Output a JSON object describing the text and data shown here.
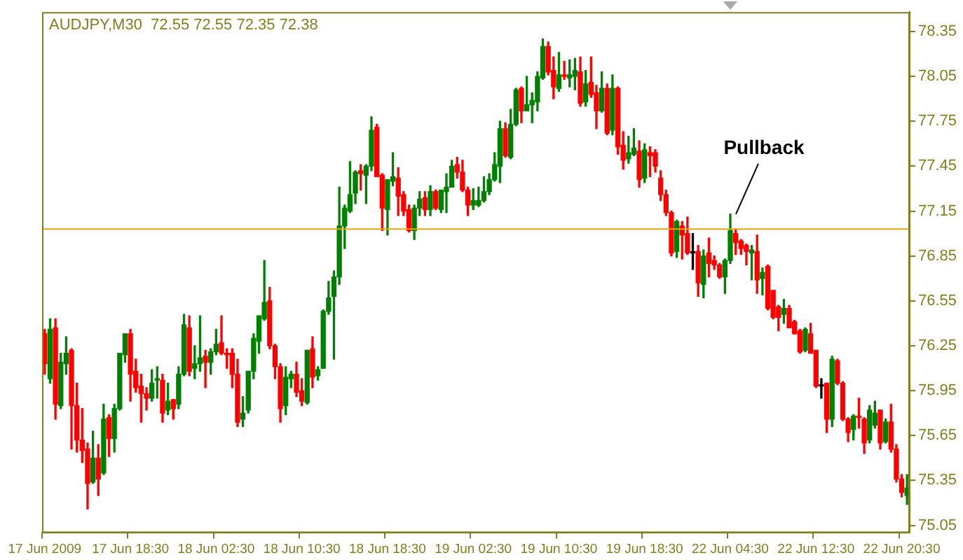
{
  "chart_data": {
    "type": "candlestick",
    "title": "AUDJPY,M30  72.55 72.55 72.35 72.38",
    "categories": [
      "17 Jun 2009",
      null,
      null,
      null,
      null,
      null,
      null,
      null,
      null,
      null,
      null,
      null,
      null,
      null,
      null,
      null,
      "17 Jun 18:30",
      null,
      null,
      null,
      null,
      null,
      null,
      null,
      null,
      null,
      null,
      null,
      null,
      null,
      null,
      null,
      "18 Jun 02:30",
      null,
      null,
      null,
      null,
      null,
      null,
      null,
      null,
      null,
      null,
      null,
      null,
      null,
      null,
      null,
      "18 Jun 10:30",
      null,
      null,
      null,
      null,
      null,
      null,
      null,
      null,
      null,
      null,
      null,
      null,
      null,
      null,
      null,
      "18 Jun 18:30",
      null,
      null,
      null,
      null,
      null,
      null,
      null,
      null,
      null,
      null,
      null,
      null,
      null,
      null,
      null,
      "19 Jun 02:30",
      null,
      null,
      null,
      null,
      null,
      null,
      null,
      null,
      null,
      null,
      null,
      null,
      null,
      null,
      null,
      "19 Jun 10:30",
      null,
      null,
      null,
      null,
      null,
      null,
      null,
      null,
      null,
      null,
      null,
      null,
      null,
      null,
      null,
      "19 Jun 18:30",
      null,
      null,
      null,
      null,
      null,
      null,
      null,
      null,
      null,
      null,
      null,
      null,
      null,
      null,
      null,
      "22 Jun 04:30",
      null,
      null,
      null,
      null,
      null,
      null,
      null,
      null,
      null,
      null,
      null,
      null,
      null,
      null,
      null,
      "22 Jun 12:30",
      null,
      null,
      null,
      null,
      null,
      null,
      null,
      null,
      null,
      null,
      null,
      null,
      null,
      null,
      null,
      "22 Jun 20:30",
      null
    ],
    "ohlc": [
      [
        76.33,
        76.36,
        76.06,
        76.13
      ],
      [
        76.03,
        76.43,
        76.0,
        76.36
      ],
      [
        76.37,
        76.43,
        75.76,
        75.86
      ],
      [
        75.85,
        76.2,
        75.83,
        76.14
      ],
      [
        76.13,
        76.31,
        76.06,
        76.2
      ],
      [
        76.22,
        76.23,
        75.56,
        75.85
      ],
      [
        75.85,
        76.0,
        75.54,
        75.62
      ],
      [
        75.62,
        75.83,
        75.47,
        75.55
      ],
      [
        75.56,
        75.6,
        75.16,
        75.33
      ],
      [
        75.34,
        75.68,
        75.33,
        75.5
      ],
      [
        75.5,
        75.59,
        75.25,
        75.36
      ],
      [
        75.4,
        75.86,
        75.39,
        75.76
      ],
      [
        75.77,
        75.79,
        75.51,
        75.63
      ],
      [
        75.63,
        75.86,
        75.54,
        75.83
      ],
      [
        75.83,
        76.2,
        75.82,
        76.2
      ],
      [
        76.19,
        76.33,
        76.14,
        76.33
      ],
      [
        76.33,
        76.36,
        75.88,
        76.06
      ],
      [
        76.08,
        76.16,
        75.94,
        75.97
      ],
      [
        75.98,
        76.06,
        75.74,
        75.93
      ],
      [
        75.93,
        75.97,
        75.82,
        75.9
      ],
      [
        75.9,
        76.09,
        75.88,
        76.0
      ],
      [
        76.02,
        76.11,
        75.9,
        76.03
      ],
      [
        76.02,
        76.06,
        75.74,
        75.8
      ],
      [
        75.82,
        76.0,
        75.79,
        75.88
      ],
      [
        75.89,
        75.89,
        75.76,
        75.83
      ],
      [
        75.86,
        76.11,
        75.83,
        76.06
      ],
      [
        76.06,
        76.46,
        76.05,
        76.39
      ],
      [
        76.37,
        76.45,
        76.05,
        76.08
      ],
      [
        76.1,
        76.25,
        76.03,
        76.13
      ],
      [
        76.13,
        76.45,
        76.08,
        76.17
      ],
      [
        76.18,
        76.22,
        75.97,
        76.14
      ],
      [
        76.14,
        76.23,
        76.06,
        76.21
      ],
      [
        76.21,
        76.36,
        76.19,
        76.26
      ],
      [
        76.27,
        76.45,
        76.19,
        76.2
      ],
      [
        76.2,
        76.23,
        76.1,
        76.19
      ],
      [
        76.2,
        76.23,
        75.97,
        76.06
      ],
      [
        76.06,
        76.16,
        75.71,
        75.74
      ],
      [
        75.76,
        75.91,
        75.71,
        75.8
      ],
      [
        75.82,
        76.08,
        75.8,
        76.08
      ],
      [
        76.08,
        76.33,
        76.03,
        76.3
      ],
      [
        76.28,
        76.45,
        76.2,
        76.45
      ],
      [
        76.43,
        76.82,
        76.42,
        76.54
      ],
      [
        76.55,
        76.64,
        76.23,
        76.25
      ],
      [
        76.25,
        76.26,
        76.03,
        76.11
      ],
      [
        76.11,
        76.13,
        75.74,
        75.83
      ],
      [
        75.85,
        76.11,
        75.79,
        76.04
      ],
      [
        76.03,
        76.08,
        75.97,
        76.06
      ],
      [
        76.06,
        76.14,
        75.91,
        75.94
      ],
      [
        75.95,
        76.03,
        75.85,
        75.88
      ],
      [
        75.87,
        76.22,
        75.86,
        76.22
      ],
      [
        76.23,
        76.31,
        75.97,
        76.04
      ],
      [
        76.05,
        76.11,
        76.02,
        76.09
      ],
      [
        76.1,
        76.49,
        76.1,
        76.48
      ],
      [
        76.48,
        76.68,
        76.46,
        76.57
      ],
      [
        76.58,
        76.75,
        76.16,
        76.71
      ],
      [
        76.71,
        77.31,
        76.66,
        77.05
      ],
      [
        77.05,
        77.19,
        76.9,
        77.17
      ],
      [
        77.15,
        77.48,
        77.14,
        77.26
      ],
      [
        77.27,
        77.42,
        77.2,
        77.41
      ],
      [
        77.42,
        77.46,
        77.29,
        77.4
      ],
      [
        77.39,
        77.46,
        77.2,
        77.45
      ],
      [
        77.45,
        77.78,
        77.42,
        77.69
      ],
      [
        77.71,
        77.73,
        77.38,
        77.38
      ],
      [
        77.39,
        77.4,
        77.02,
        77.17
      ],
      [
        77.16,
        77.36,
        76.99,
        77.36
      ],
      [
        77.35,
        77.54,
        77.32,
        77.38
      ],
      [
        77.37,
        77.44,
        77.12,
        77.25
      ],
      [
        77.26,
        77.28,
        77.12,
        77.15
      ],
      [
        77.16,
        77.19,
        77.01,
        77.02
      ],
      [
        77.02,
        77.19,
        76.96,
        77.17
      ],
      [
        77.17,
        77.28,
        77.12,
        77.23
      ],
      [
        77.24,
        77.28,
        77.12,
        77.16
      ],
      [
        77.16,
        77.32,
        77.12,
        77.28
      ],
      [
        77.28,
        77.29,
        77.16,
        77.17
      ],
      [
        77.16,
        77.29,
        77.14,
        77.29
      ],
      [
        77.28,
        77.4,
        77.14,
        77.31
      ],
      [
        77.31,
        77.49,
        77.31,
        77.45
      ],
      [
        77.46,
        77.51,
        77.37,
        77.41
      ],
      [
        77.41,
        77.49,
        77.28,
        77.29
      ],
      [
        77.29,
        77.31,
        77.12,
        77.19
      ],
      [
        77.19,
        77.3,
        77.16,
        77.22
      ],
      [
        77.19,
        77.31,
        77.18,
        77.22
      ],
      [
        77.22,
        77.38,
        77.21,
        77.28
      ],
      [
        77.28,
        77.4,
        77.26,
        77.36
      ],
      [
        77.36,
        77.54,
        77.35,
        77.46
      ],
      [
        77.45,
        77.75,
        77.34,
        77.7
      ],
      [
        77.7,
        77.74,
        77.51,
        77.52
      ],
      [
        77.51,
        77.83,
        77.5,
        77.73
      ],
      [
        77.73,
        77.97,
        77.72,
        77.96
      ],
      [
        77.97,
        77.98,
        77.74,
        77.82
      ],
      [
        77.82,
        78.05,
        77.82,
        77.86
      ],
      [
        77.86,
        77.94,
        77.74,
        77.89
      ],
      [
        77.88,
        78.08,
        77.82,
        78.05
      ],
      [
        78.04,
        78.3,
        78.03,
        78.25
      ],
      [
        78.25,
        78.28,
        78.06,
        78.08
      ],
      [
        78.09,
        78.18,
        77.9,
        77.98
      ],
      [
        77.97,
        78.21,
        77.95,
        78.06
      ],
      [
        78.06,
        78.15,
        78.03,
        78.05
      ],
      [
        78.04,
        78.16,
        77.98,
        78.06
      ],
      [
        78.05,
        78.17,
        77.96,
        78.09
      ],
      [
        78.08,
        78.18,
        77.85,
        77.87
      ],
      [
        77.88,
        78.09,
        77.85,
        78.0
      ],
      [
        78.01,
        78.18,
        77.91,
        77.93
      ],
      [
        77.94,
        77.99,
        77.7,
        77.82
      ],
      [
        77.82,
        78.08,
        77.81,
        77.97
      ],
      [
        77.97,
        78.0,
        77.66,
        77.67
      ],
      [
        77.69,
        78.06,
        77.66,
        77.97
      ],
      [
        77.97,
        77.98,
        77.53,
        77.58
      ],
      [
        77.59,
        77.68,
        77.43,
        77.49
      ],
      [
        77.5,
        77.65,
        77.47,
        77.54
      ],
      [
        77.53,
        77.7,
        77.52,
        77.57
      ],
      [
        77.55,
        77.62,
        77.31,
        77.36
      ],
      [
        77.37,
        77.6,
        77.34,
        77.56
      ],
      [
        77.54,
        77.58,
        77.38,
        77.52
      ],
      [
        77.54,
        77.56,
        77.41,
        77.45
      ],
      [
        77.37,
        77.42,
        77.22,
        77.26
      ],
      [
        77.26,
        77.29,
        77.12,
        77.14
      ],
      [
        77.14,
        77.15,
        76.85,
        76.87
      ],
      [
        76.88,
        77.09,
        76.84,
        77.08
      ],
      [
        77.05,
        77.08,
        76.83,
        76.99
      ],
      [
        77.0,
        77.11,
        76.86,
        76.87
      ],
      [
        76.87,
        77.0,
        76.76,
        76.87
      ],
      [
        76.88,
        76.92,
        76.58,
        76.67
      ],
      [
        76.66,
        76.89,
        76.57,
        76.85
      ],
      [
        76.87,
        76.97,
        76.71,
        76.8
      ],
      [
        76.82,
        76.85,
        76.76,
        76.79
      ],
      [
        76.79,
        76.8,
        76.7,
        76.71
      ],
      [
        76.71,
        76.83,
        76.6,
        76.82
      ],
      [
        76.82,
        77.13,
        76.8,
        77.02
      ],
      [
        77.0,
        77.03,
        76.86,
        76.94
      ],
      [
        76.95,
        76.96,
        76.86,
        76.9
      ],
      [
        76.92,
        76.93,
        76.79,
        76.88
      ],
      [
        76.87,
        76.92,
        76.69,
        76.89
      ],
      [
        76.88,
        76.99,
        76.6,
        76.69
      ],
      [
        76.7,
        76.77,
        76.59,
        76.74
      ],
      [
        76.78,
        76.79,
        76.49,
        76.5
      ],
      [
        76.62,
        76.62,
        76.43,
        76.44
      ],
      [
        76.51,
        76.52,
        76.35,
        76.44
      ],
      [
        76.46,
        76.56,
        76.4,
        76.5
      ],
      [
        76.5,
        76.52,
        76.37,
        76.37
      ],
      [
        76.41,
        76.42,
        76.33,
        76.33
      ],
      [
        76.35,
        76.36,
        76.2,
        76.21
      ],
      [
        76.22,
        76.37,
        76.21,
        76.36
      ],
      [
        76.33,
        76.4,
        76.2,
        76.2
      ],
      [
        76.22,
        76.22,
        75.97,
        75.98
      ],
      [
        75.98,
        76.03,
        75.9,
        75.98
      ],
      [
        76.0,
        76.0,
        75.67,
        75.76
      ],
      [
        75.76,
        76.18,
        75.71,
        76.16
      ],
      [
        76.15,
        76.16,
        75.99,
        76.0
      ],
      [
        76.0,
        76.01,
        75.75,
        75.76
      ],
      [
        75.76,
        75.77,
        75.61,
        75.67
      ],
      [
        75.69,
        75.79,
        75.62,
        75.78
      ],
      [
        75.78,
        75.9,
        75.7,
        75.77
      ],
      [
        75.76,
        75.77,
        75.53,
        75.6
      ],
      [
        75.62,
        75.85,
        75.6,
        75.82
      ],
      [
        75.72,
        75.88,
        75.7,
        75.8
      ],
      [
        75.82,
        75.82,
        75.56,
        75.6
      ],
      [
        75.61,
        75.76,
        75.6,
        75.74
      ],
      [
        75.74,
        75.86,
        75.54,
        75.56
      ],
      [
        75.56,
        75.59,
        75.34,
        75.36
      ],
      [
        75.36,
        75.39,
        75.24,
        75.27
      ],
      [
        75.25,
        75.39,
        75.19,
        75.3
      ]
    ],
    "colors": [
      "#ff0000",
      "#008000",
      "#ff0000",
      "#008000",
      "#008000",
      "#ff0000",
      "#ff0000",
      "#ff0000",
      "#ff0000",
      "#008000",
      "#ff0000",
      "#008000",
      "#ff0000",
      "#008000",
      "#008000",
      "#008000",
      "#ff0000",
      "#ff0000",
      "#ff0000",
      "#ff0000",
      "#008000",
      "#008000",
      "#ff0000",
      "#008000",
      "#ff0000",
      "#008000",
      "#008000",
      "#ff0000",
      "#008000",
      "#008000",
      "#ff0000",
      "#008000",
      "#008000",
      "#ff0000",
      "#ff0000",
      "#ff0000",
      "#ff0000",
      "#008000",
      "#008000",
      "#008000",
      "#008000",
      "#008000",
      "#ff0000",
      "#ff0000",
      "#ff0000",
      "#008000",
      "#008000",
      "#ff0000",
      "#ff0000",
      "#008000",
      "#ff0000",
      "#008000",
      "#008000",
      "#008000",
      "#008000",
      "#008000",
      "#008000",
      "#008000",
      "#008000",
      "#ff0000",
      "#008000",
      "#008000",
      "#ff0000",
      "#ff0000",
      "#008000",
      "#008000",
      "#ff0000",
      "#ff0000",
      "#ff0000",
      "#008000",
      "#008000",
      "#ff0000",
      "#008000",
      "#ff0000",
      "#008000",
      "#008000",
      "#008000",
      "#ff0000",
      "#ff0000",
      "#ff0000",
      "#008000",
      "#008000",
      "#008000",
      "#008000",
      "#008000",
      "#008000",
      "#ff0000",
      "#008000",
      "#008000",
      "#ff0000",
      "#008000",
      "#008000",
      "#008000",
      "#008000",
      "#ff0000",
      "#ff0000",
      "#008000",
      "#ff0000",
      "#008000",
      "#008000",
      "#ff0000",
      "#008000",
      "#ff0000",
      "#ff0000",
      "#008000",
      "#ff0000",
      "#008000",
      "#ff0000",
      "#ff0000",
      "#008000",
      "#008000",
      "#ff0000",
      "#008000",
      "#ff0000",
      "#ff0000",
      "#ff0000",
      "#ff0000",
      "#ff0000",
      "#008000",
      "#ff0000",
      "#ff0000",
      "#000000",
      "#ff0000",
      "#008000",
      "#ff0000",
      "#ff0000",
      "#ff0000",
      "#008000",
      "#008000",
      "#ff0000",
      "#ff0000",
      "#ff0000",
      "#008000",
      "#ff0000",
      "#008000",
      "#ff0000",
      "#ff0000",
      "#ff0000",
      "#008000",
      "#ff0000",
      "#ff0000",
      "#ff0000",
      "#008000",
      "#ff0000",
      "#ff0000",
      "#000000",
      "#ff0000",
      "#008000",
      "#ff0000",
      "#ff0000",
      "#ff0000",
      "#008000",
      "#ff0000",
      "#ff0000",
      "#008000",
      "#008000",
      "#ff0000",
      "#008000",
      "#ff0000",
      "#ff0000",
      "#ff0000",
      "#008000"
    ],
    "ylim": [
      75.0,
      78.48
    ],
    "yticks": [
      75.05,
      75.35,
      75.65,
      75.95,
      76.25,
      76.55,
      76.85,
      77.15,
      77.45,
      77.75,
      78.05,
      78.35
    ],
    "grid": false,
    "legend": false,
    "ref_lines": [
      {
        "axis": "y",
        "value": 77.03,
        "color": "#e8a317"
      }
    ],
    "annotations": [
      {
        "text": "Pullback",
        "x": "22 Jun 04:30",
        "y": 77.13
      }
    ]
  }
}
